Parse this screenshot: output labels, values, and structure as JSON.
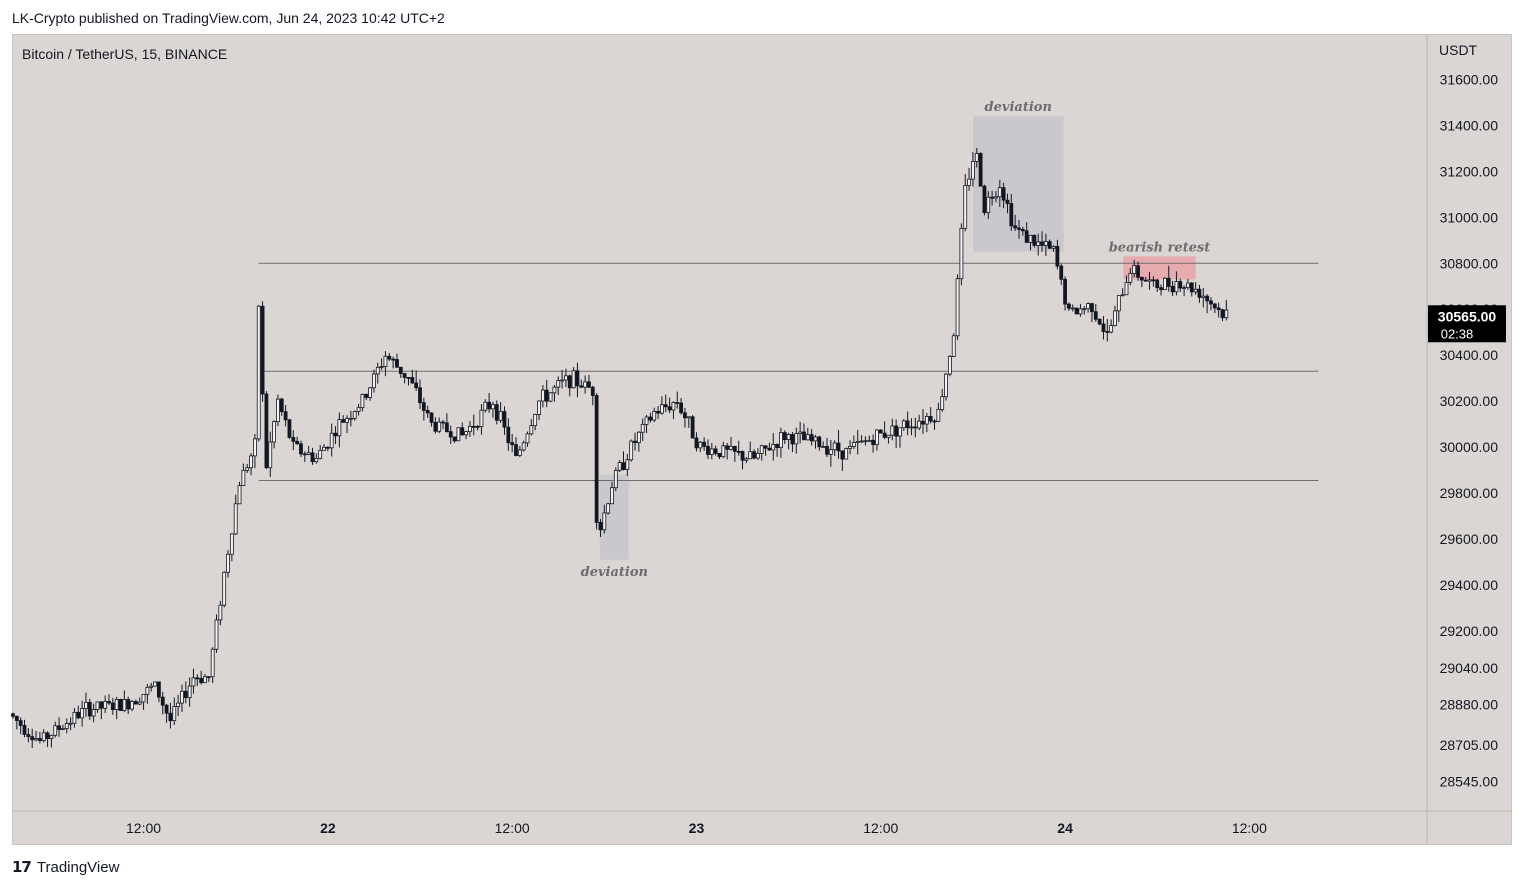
{
  "header": {
    "published": "LK-Crypto published on TradingView.com, Jun 24, 2023 10:42 UTC+2"
  },
  "symbol": "Bitcoin / TetherUS, 15, BINANCE",
  "footer": {
    "brand": "TradingView"
  },
  "colors": {
    "background": "#dbd6d3",
    "candle": "#131722",
    "level_line": "#6e6e6e",
    "deviation_box": "#c8c6cb",
    "retest_box": "#e8a2a8",
    "price_tag_bg": "#000000",
    "price_tag_text": "#ffffff"
  },
  "chart_data": {
    "type": "candlestick",
    "title": "Bitcoin / TetherUS, 15, BINANCE",
    "ylabel": "USDT",
    "ylim": [
      28430,
      31680
    ],
    "y_ticks": [
      "31600.00",
      "31400.00",
      "31200.00",
      "31000.00",
      "30800.00",
      "30600.00",
      "30400.00",
      "30200.00",
      "30000.00",
      "29800.00",
      "29600.00",
      "29400.00",
      "29200.00",
      "29040.00",
      "28880.00",
      "28705.00",
      "28545.00"
    ],
    "x_ticks": [
      "12:00",
      "22",
      "12:00",
      "23",
      "12:00",
      "24",
      "12:00"
    ],
    "x_tick_hours": [
      12,
      24,
      36,
      48,
      60,
      72,
      84
    ],
    "x_range_hours": [
      3.5,
      95.5
    ],
    "last_price": "30565.00",
    "countdown": "02:38",
    "levels": [
      {
        "price": 30800,
        "from_hour": 19.5,
        "to_hour": 88.5
      },
      {
        "price": 30330,
        "from_hour": 19.5,
        "to_hour": 88.5
      },
      {
        "price": 29855,
        "from_hour": 19.5,
        "to_hour": 88.5
      }
    ],
    "annotations": [
      {
        "label": "deviation",
        "type": "box",
        "color": "gray",
        "from_hour": 41.7,
        "to_hour": 43.6,
        "low": 29510,
        "high": 29880
      },
      {
        "label": "deviation",
        "type": "box",
        "color": "gray",
        "from_hour": 66.0,
        "to_hour": 71.9,
        "low": 30850,
        "high": 31440
      },
      {
        "label": "bearish retest",
        "type": "box",
        "color": "red",
        "from_hour": 75.8,
        "to_hour": 80.5,
        "low": 30730,
        "high": 30830
      }
    ],
    "ohlc_series": {
      "interval_minutes": 15,
      "note": "Price path approximated from the figure",
      "path": [
        {
          "hour": 3.5,
          "price": 28840
        },
        {
          "hour": 5.5,
          "price": 28720
        },
        {
          "hour": 8.5,
          "price": 28860
        },
        {
          "hour": 11.0,
          "price": 28880
        },
        {
          "hour": 13.0,
          "price": 28960
        },
        {
          "hour": 14.0,
          "price": 28810
        },
        {
          "hour": 15.5,
          "price": 29000
        },
        {
          "hour": 16.5,
          "price": 29000
        },
        {
          "hour": 17.5,
          "price": 29450
        },
        {
          "hour": 18.5,
          "price": 29850
        },
        {
          "hour": 19.5,
          "price": 30000
        },
        {
          "hour": 19.7,
          "price": 30700
        },
        {
          "hour": 20.2,
          "price": 29900
        },
        {
          "hour": 21.0,
          "price": 30200
        },
        {
          "hour": 22.0,
          "price": 30000
        },
        {
          "hour": 23.5,
          "price": 29950
        },
        {
          "hour": 25.0,
          "price": 30100
        },
        {
          "hour": 26.5,
          "price": 30200
        },
        {
          "hour": 28.0,
          "price": 30400
        },
        {
          "hour": 29.5,
          "price": 30300
        },
        {
          "hour": 31.0,
          "price": 30100
        },
        {
          "hour": 33.0,
          "price": 30050
        },
        {
          "hour": 35.0,
          "price": 30200
        },
        {
          "hour": 36.5,
          "price": 29950
        },
        {
          "hour": 38.0,
          "price": 30200
        },
        {
          "hour": 40.0,
          "price": 30300
        },
        {
          "hour": 41.5,
          "price": 30250
        },
        {
          "hour": 41.8,
          "price": 29600
        },
        {
          "hour": 42.8,
          "price": 29850
        },
        {
          "hour": 44.0,
          "price": 30000
        },
        {
          "hour": 45.5,
          "price": 30150
        },
        {
          "hour": 47.0,
          "price": 30200
        },
        {
          "hour": 48.5,
          "price": 30000
        },
        {
          "hour": 50.0,
          "price": 29980
        },
        {
          "hour": 52.0,
          "price": 29950
        },
        {
          "hour": 54.0,
          "price": 30050
        },
        {
          "hour": 56.0,
          "price": 30020
        },
        {
          "hour": 58.0,
          "price": 29980
        },
        {
          "hour": 60.0,
          "price": 30050
        },
        {
          "hour": 62.0,
          "price": 30100
        },
        {
          "hour": 64.0,
          "price": 30150
        },
        {
          "hour": 65.0,
          "price": 30500
        },
        {
          "hour": 65.7,
          "price": 31100
        },
        {
          "hour": 66.4,
          "price": 31300
        },
        {
          "hour": 67.0,
          "price": 31050
        },
        {
          "hour": 68.0,
          "price": 31150
        },
        {
          "hour": 69.0,
          "price": 30950
        },
        {
          "hour": 70.5,
          "price": 30880
        },
        {
          "hour": 71.5,
          "price": 30850
        },
        {
          "hour": 72.5,
          "price": 30580
        },
        {
          "hour": 74.0,
          "price": 30620
        },
        {
          "hour": 75.0,
          "price": 30480
        },
        {
          "hour": 76.5,
          "price": 30780
        },
        {
          "hour": 78.0,
          "price": 30700
        },
        {
          "hour": 79.5,
          "price": 30720
        },
        {
          "hour": 81.0,
          "price": 30680
        },
        {
          "hour": 82.5,
          "price": 30580
        }
      ]
    }
  }
}
